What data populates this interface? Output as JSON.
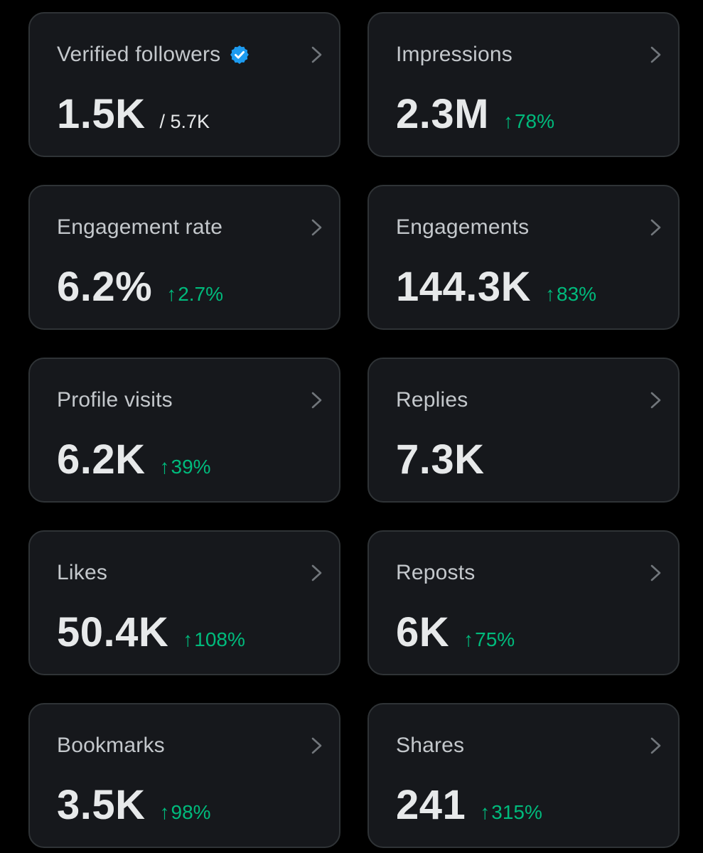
{
  "colors": {
    "background": "#000000",
    "card_background": "#16181c",
    "card_border": "#2f3336",
    "label_text": "#c4c8cc",
    "value_text": "#e7e9ea",
    "positive_delta": "#00ba7c",
    "verified_badge": "#1d9bf0"
  },
  "icons": {
    "verified": "verified-badge-icon",
    "chevron": "chevron-right-icon",
    "arrow": "arrow-up-icon"
  },
  "cards": [
    {
      "label": "Verified followers",
      "value": "1.5K",
      "total": "/ 5.7K"
    },
    {
      "label": "Impressions",
      "value": "2.3M",
      "arrow": "↑",
      "delta": "78%"
    },
    {
      "label": "Engagement rate",
      "value": "6.2%",
      "arrow": "↑",
      "delta": "2.7%"
    },
    {
      "label": "Engagements",
      "value": "144.3K",
      "arrow": "↑",
      "delta": "83%"
    },
    {
      "label": "Profile visits",
      "value": "6.2K",
      "arrow": "↑",
      "delta": "39%"
    },
    {
      "label": "Replies",
      "value": "7.3K"
    },
    {
      "label": "Likes",
      "value": "50.4K",
      "arrow": "↑",
      "delta": "108%"
    },
    {
      "label": "Reposts",
      "value": "6K",
      "arrow": "↑",
      "delta": "75%"
    },
    {
      "label": "Bookmarks",
      "value": "3.5K",
      "arrow": "↑",
      "delta": "98%"
    },
    {
      "label": "Shares",
      "value": "241",
      "arrow": "↑",
      "delta": "315%"
    }
  ]
}
